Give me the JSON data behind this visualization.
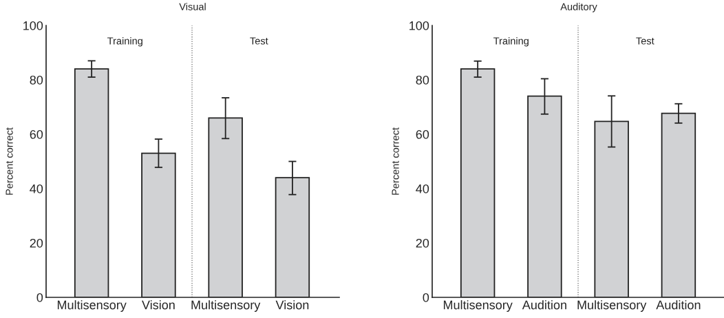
{
  "chart_data": [
    {
      "type": "bar",
      "title": "Visual",
      "ylabel": "Percent correct",
      "categories": [
        "Multisensory",
        "Vision",
        "Multisensory",
        "Vision"
      ],
      "values": [
        84,
        53,
        66,
        44
      ],
      "errors": [
        [
          81,
          87
        ],
        [
          47.8,
          58.2
        ],
        [
          58.4,
          73.4
        ],
        [
          37.8,
          50
        ]
      ],
      "color": "#d1d2d4",
      "ylim": [
        0,
        100
      ],
      "yticks": [
        0,
        20,
        40,
        60,
        80,
        100
      ],
      "annotations": [
        "Training",
        "Test"
      ],
      "grid": false,
      "legend": false
    },
    {
      "type": "bar",
      "title": "Auditory",
      "ylabel": "Percent correct",
      "categories": [
        "Multisensory",
        "Audition",
        "Multisensory",
        "Audition"
      ],
      "values": [
        84,
        74,
        64.7,
        67.7
      ],
      "errors": [
        [
          81,
          86.9
        ],
        [
          67.4,
          80.4
        ],
        [
          55.3,
          74.1
        ],
        [
          64.1,
          71.2
        ]
      ],
      "color": "#d1d2d4",
      "ylim": [
        0,
        100
      ],
      "yticks": [
        0,
        20,
        40,
        60,
        80,
        100
      ],
      "annotations": [
        "Training",
        "Test"
      ],
      "grid": false,
      "legend": false
    }
  ]
}
